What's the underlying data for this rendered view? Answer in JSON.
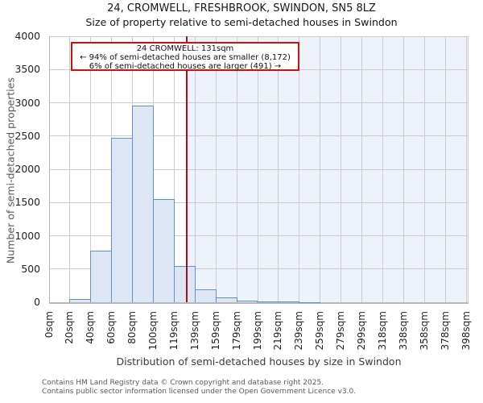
{
  "title": "24, CROMWELL, FRESHBROOK, SWINDON, SN5 8LZ",
  "subtitle": "Size of property relative to semi-detached houses in Swindon",
  "annotation": {
    "line1": "24 CROMWELL: 131sqm",
    "line2": "← 94% of semi-detached houses are smaller (8,172)",
    "line3": "6% of semi-detached houses are larger (491) →"
  },
  "footer": {
    "line1": "Contains HM Land Registry data © Crown copyright and database right 2025.",
    "line2": "Contains public sector information licensed under the Open Government Licence v3.0."
  },
  "chart_data": {
    "type": "bar",
    "title": "24, CROMWELL, FRESHBROOK, SWINDON, SN5 8LZ",
    "subtitle": "Size of property relative to semi-detached houses in Swindon",
    "xlabel": "Distribution of semi-detached houses by size in Swindon",
    "ylabel": "Number of semi-detached properties",
    "bin_edges": [
      0,
      20,
      40,
      60,
      80,
      100,
      119,
      139,
      159,
      179,
      199,
      219,
      239,
      259,
      279,
      299,
      318,
      338,
      358,
      378,
      398
    ],
    "x_tick_labels": [
      "0sqm",
      "20sqm",
      "40sqm",
      "60sqm",
      "80sqm",
      "100sqm",
      "119sqm",
      "139sqm",
      "159sqm",
      "179sqm",
      "199sqm",
      "219sqm",
      "239sqm",
      "259sqm",
      "279sqm",
      "299sqm",
      "318sqm",
      "338sqm",
      "358sqm",
      "378sqm",
      "398sqm"
    ],
    "values": [
      0,
      45,
      780,
      2470,
      2960,
      1550,
      550,
      190,
      70,
      25,
      10,
      10,
      6,
      0,
      0,
      0,
      0,
      0,
      0,
      0
    ],
    "ylim": [
      0,
      4000
    ],
    "ytick_step": 500,
    "grid": true,
    "marker": {
      "sqm": 131,
      "label": "24 CROMWELL: 131sqm",
      "smaller_pct": 94,
      "smaller_count": "8,172",
      "larger_pct": 6,
      "larger_count": "491"
    },
    "colors": {
      "bar_fill": "#dce6f4",
      "bar_edge": "#6590c6",
      "marker_line": "#a70e14",
      "annotation_border": "#cc1111",
      "shade_right": "#edf2fb",
      "grid": "#cccccc",
      "spine": "#b7babd"
    }
  }
}
